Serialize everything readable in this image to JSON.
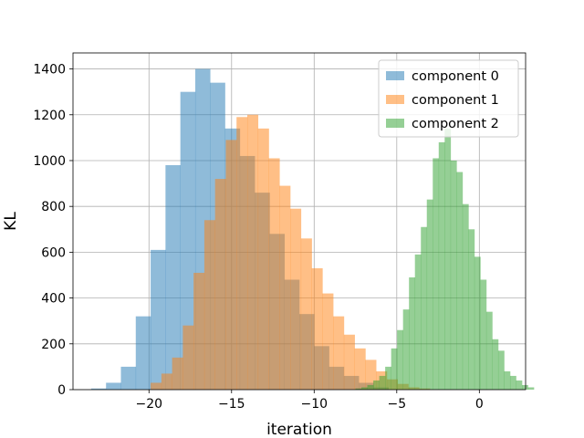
{
  "chart_data": {
    "type": "histogram",
    "title": "",
    "xlabel": "iteration",
    "ylabel": "KL",
    "xlim": [
      -24.6,
      2.8
    ],
    "ylim": [
      0,
      1470
    ],
    "xticks": [
      -20,
      -15,
      -10,
      -5,
      0
    ],
    "xtick_labels": [
      "−20",
      "−15",
      "−10",
      "−5",
      "0"
    ],
    "yticks": [
      0,
      200,
      400,
      600,
      800,
      1000,
      1200,
      1400
    ],
    "ytick_labels": [
      "0",
      "200",
      "400",
      "600",
      "800",
      "1000",
      "1200",
      "1400"
    ],
    "grid": true,
    "legend_position": "upper-right",
    "series": [
      {
        "name": "component 0",
        "color": "#1f77b4",
        "alpha": 0.5,
        "bin_start": -23.5,
        "bin_width": 0.9,
        "counts": [
          5,
          30,
          100,
          320,
          610,
          980,
          1300,
          1400,
          1340,
          1140,
          1020,
          860,
          680,
          480,
          330,
          190,
          100,
          60,
          30,
          10
        ]
      },
      {
        "name": "component 1",
        "color": "#ff7f0e",
        "alpha": 0.5,
        "bin_start": -19.9,
        "bin_width": 0.65,
        "counts": [
          30,
          70,
          140,
          280,
          510,
          740,
          920,
          1090,
          1190,
          1200,
          1140,
          1010,
          890,
          790,
          660,
          530,
          420,
          320,
          240,
          180,
          130,
          80,
          45,
          25,
          10,
          5
        ]
      },
      {
        "name": "component 2",
        "color": "#2ca02c",
        "alpha": 0.5,
        "bin_start": -7.5,
        "bin_width": 0.36,
        "counts": [
          5,
          10,
          20,
          40,
          60,
          100,
          180,
          260,
          350,
          490,
          590,
          710,
          830,
          1010,
          1080,
          1140,
          1000,
          950,
          810,
          700,
          580,
          480,
          340,
          220,
          170,
          80,
          60,
          40,
          20,
          10
        ]
      }
    ]
  }
}
